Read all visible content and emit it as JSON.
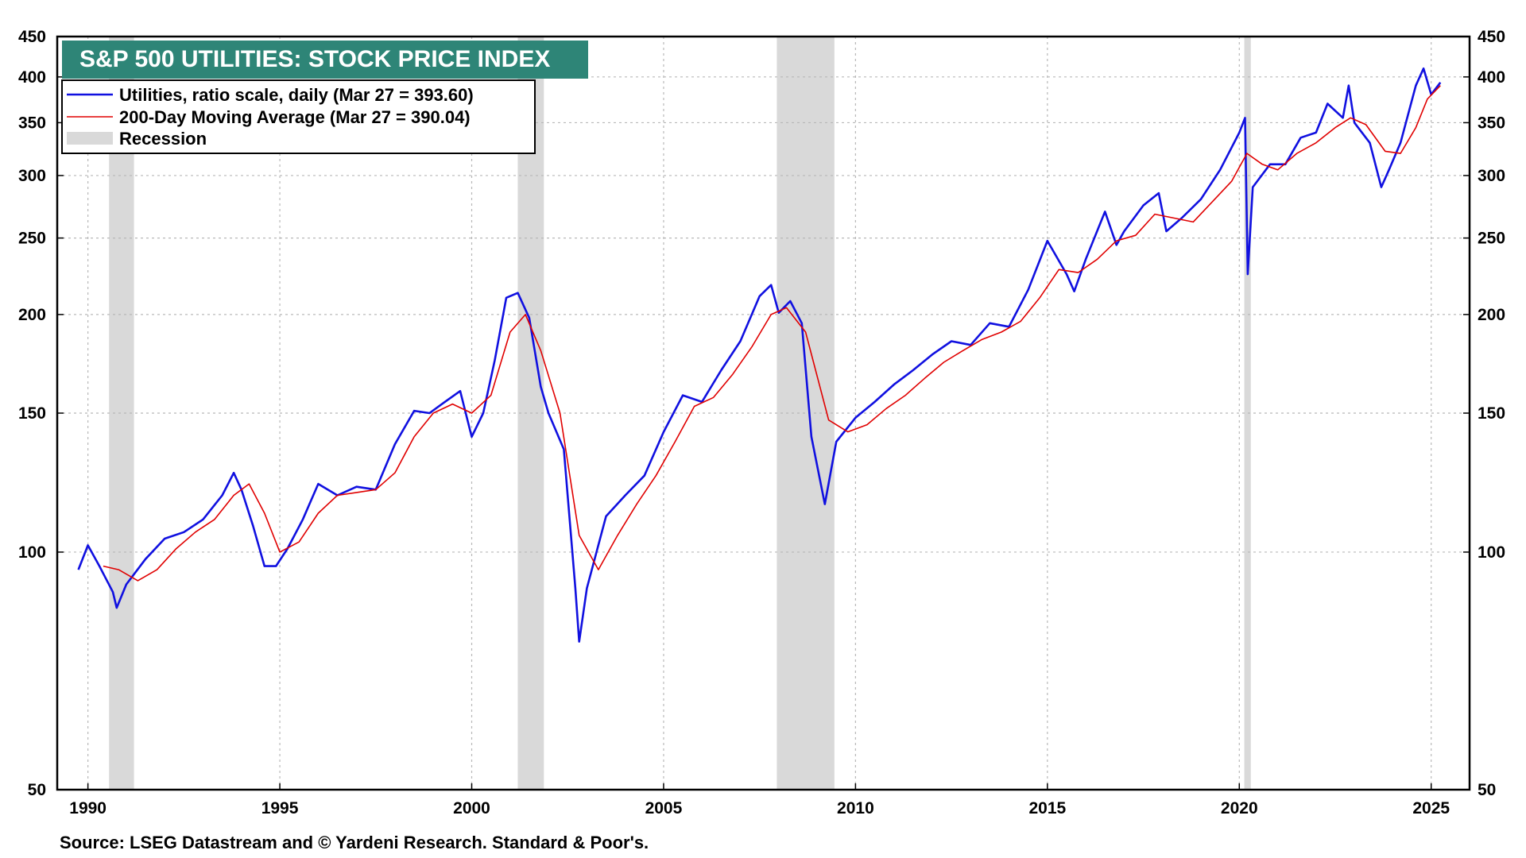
{
  "chart_data": {
    "type": "line",
    "title": "S&P 500 UTILITIES: STOCK PRICE INDEX",
    "scale": "log",
    "ylim": [
      50,
      450
    ],
    "xlim": [
      1989.2,
      2026.0
    ],
    "y_ticks": [
      50,
      100,
      150,
      200,
      250,
      300,
      350,
      400,
      450
    ],
    "x_ticks": [
      1990,
      1995,
      2000,
      2005,
      2010,
      2015,
      2020,
      2025
    ],
    "grid": true,
    "legend_position": "top-left",
    "legend": [
      "Utilities, ratio scale, daily (Mar 27 = 393.60)",
      "200-Day Moving Average (Mar 27 = 390.04)",
      "Recession"
    ],
    "recessions": [
      [
        1990.55,
        1991.2
      ],
      [
        2001.2,
        2001.88
      ],
      [
        2007.95,
        2009.45
      ],
      [
        2020.13,
        2020.3
      ]
    ],
    "series": [
      {
        "name": "Utilities, ratio scale, daily (Mar 27 = 393.60)",
        "color": "#1010e0",
        "points": [
          [
            1989.75,
            95
          ],
          [
            1990.0,
            102
          ],
          [
            1990.3,
            96
          ],
          [
            1990.65,
            89
          ],
          [
            1990.75,
            85
          ],
          [
            1991.0,
            91
          ],
          [
            1991.5,
            98
          ],
          [
            1992.0,
            104
          ],
          [
            1992.5,
            106
          ],
          [
            1993.0,
            110
          ],
          [
            1993.5,
            118
          ],
          [
            1993.8,
            126
          ],
          [
            1994.0,
            120
          ],
          [
            1994.3,
            108
          ],
          [
            1994.6,
            96
          ],
          [
            1994.9,
            96
          ],
          [
            1995.2,
            101
          ],
          [
            1995.6,
            110
          ],
          [
            1996.0,
            122
          ],
          [
            1996.5,
            118
          ],
          [
            1997.0,
            121
          ],
          [
            1997.5,
            120
          ],
          [
            1998.0,
            137
          ],
          [
            1998.5,
            151
          ],
          [
            1998.9,
            150
          ],
          [
            1999.3,
            155
          ],
          [
            1999.7,
            160
          ],
          [
            2000.0,
            140
          ],
          [
            2000.3,
            150
          ],
          [
            2000.6,
            175
          ],
          [
            2000.9,
            210
          ],
          [
            2001.2,
            213
          ],
          [
            2001.5,
            198
          ],
          [
            2001.8,
            162
          ],
          [
            2002.0,
            150
          ],
          [
            2002.4,
            135
          ],
          [
            2002.7,
            90
          ],
          [
            2002.8,
            77
          ],
          [
            2003.0,
            90
          ],
          [
            2003.5,
            111
          ],
          [
            2004.0,
            118
          ],
          [
            2004.5,
            125
          ],
          [
            2005.0,
            142
          ],
          [
            2005.5,
            158
          ],
          [
            2006.0,
            155
          ],
          [
            2006.5,
            170
          ],
          [
            2007.0,
            185
          ],
          [
            2007.5,
            211
          ],
          [
            2007.8,
            218
          ],
          [
            2008.0,
            201
          ],
          [
            2008.3,
            208
          ],
          [
            2008.6,
            195
          ],
          [
            2008.85,
            140
          ],
          [
            2009.2,
            115
          ],
          [
            2009.5,
            138
          ],
          [
            2010.0,
            148
          ],
          [
            2010.5,
            155
          ],
          [
            2011.0,
            163
          ],
          [
            2011.5,
            170
          ],
          [
            2012.0,
            178
          ],
          [
            2012.5,
            185
          ],
          [
            2013.0,
            183
          ],
          [
            2013.5,
            195
          ],
          [
            2014.0,
            193
          ],
          [
            2014.5,
            215
          ],
          [
            2015.0,
            248
          ],
          [
            2015.5,
            225
          ],
          [
            2015.7,
            214
          ],
          [
            2016.0,
            235
          ],
          [
            2016.5,
            270
          ],
          [
            2016.8,
            245
          ],
          [
            2017.0,
            255
          ],
          [
            2017.5,
            275
          ],
          [
            2017.9,
            285
          ],
          [
            2018.1,
            255
          ],
          [
            2018.5,
            265
          ],
          [
            2019.0,
            280
          ],
          [
            2019.5,
            305
          ],
          [
            2020.0,
            340
          ],
          [
            2020.15,
            355
          ],
          [
            2020.22,
            225
          ],
          [
            2020.35,
            290
          ],
          [
            2020.8,
            310
          ],
          [
            2021.2,
            310
          ],
          [
            2021.6,
            335
          ],
          [
            2022.0,
            340
          ],
          [
            2022.3,
            370
          ],
          [
            2022.7,
            355
          ],
          [
            2022.85,
            390
          ],
          [
            2023.0,
            350
          ],
          [
            2023.4,
            330
          ],
          [
            2023.7,
            290
          ],
          [
            2023.9,
            305
          ],
          [
            2024.2,
            330
          ],
          [
            2024.6,
            390
          ],
          [
            2024.8,
            410
          ],
          [
            2025.0,
            380
          ],
          [
            2025.24,
            393.6
          ]
        ]
      },
      {
        "name": "200-Day Moving Average (Mar 27 = 390.04)",
        "color": "#e00000",
        "points": [
          [
            1990.4,
            96
          ],
          [
            1990.8,
            95
          ],
          [
            1991.3,
            92
          ],
          [
            1991.8,
            95
          ],
          [
            1992.3,
            101
          ],
          [
            1992.8,
            106
          ],
          [
            1993.3,
            110
          ],
          [
            1993.8,
            118
          ],
          [
            1994.2,
            122
          ],
          [
            1994.6,
            112
          ],
          [
            1995.0,
            100
          ],
          [
            1995.5,
            103
          ],
          [
            1996.0,
            112
          ],
          [
            1996.5,
            118
          ],
          [
            1997.0,
            119
          ],
          [
            1997.5,
            120
          ],
          [
            1998.0,
            126
          ],
          [
            1998.5,
            140
          ],
          [
            1999.0,
            150
          ],
          [
            1999.5,
            154
          ],
          [
            2000.0,
            150
          ],
          [
            2000.5,
            158
          ],
          [
            2001.0,
            190
          ],
          [
            2001.4,
            200
          ],
          [
            2001.8,
            180
          ],
          [
            2002.3,
            150
          ],
          [
            2002.8,
            105
          ],
          [
            2003.3,
            95
          ],
          [
            2003.8,
            105
          ],
          [
            2004.3,
            115
          ],
          [
            2004.8,
            125
          ],
          [
            2005.3,
            138
          ],
          [
            2005.8,
            153
          ],
          [
            2006.3,
            157
          ],
          [
            2006.8,
            168
          ],
          [
            2007.3,
            182
          ],
          [
            2007.8,
            200
          ],
          [
            2008.2,
            204
          ],
          [
            2008.7,
            190
          ],
          [
            2009.3,
            147
          ],
          [
            2009.8,
            142
          ],
          [
            2010.3,
            145
          ],
          [
            2010.8,
            152
          ],
          [
            2011.3,
            158
          ],
          [
            2011.8,
            166
          ],
          [
            2012.3,
            174
          ],
          [
            2012.8,
            180
          ],
          [
            2013.3,
            186
          ],
          [
            2013.8,
            190
          ],
          [
            2014.3,
            196
          ],
          [
            2014.8,
            210
          ],
          [
            2015.3,
            228
          ],
          [
            2015.8,
            226
          ],
          [
            2016.3,
            235
          ],
          [
            2016.8,
            248
          ],
          [
            2017.3,
            252
          ],
          [
            2017.8,
            268
          ],
          [
            2018.3,
            265
          ],
          [
            2018.8,
            262
          ],
          [
            2019.3,
            278
          ],
          [
            2019.8,
            295
          ],
          [
            2020.2,
            320
          ],
          [
            2020.6,
            310
          ],
          [
            2021.0,
            305
          ],
          [
            2021.5,
            320
          ],
          [
            2022.0,
            330
          ],
          [
            2022.5,
            345
          ],
          [
            2022.9,
            355
          ],
          [
            2023.3,
            348
          ],
          [
            2023.8,
            322
          ],
          [
            2024.2,
            320
          ],
          [
            2024.6,
            345
          ],
          [
            2024.9,
            375
          ],
          [
            2025.24,
            390.04
          ]
        ]
      }
    ],
    "source": "Source: LSEG Datastream and © Yardeni Research. Standard & Poor's."
  }
}
